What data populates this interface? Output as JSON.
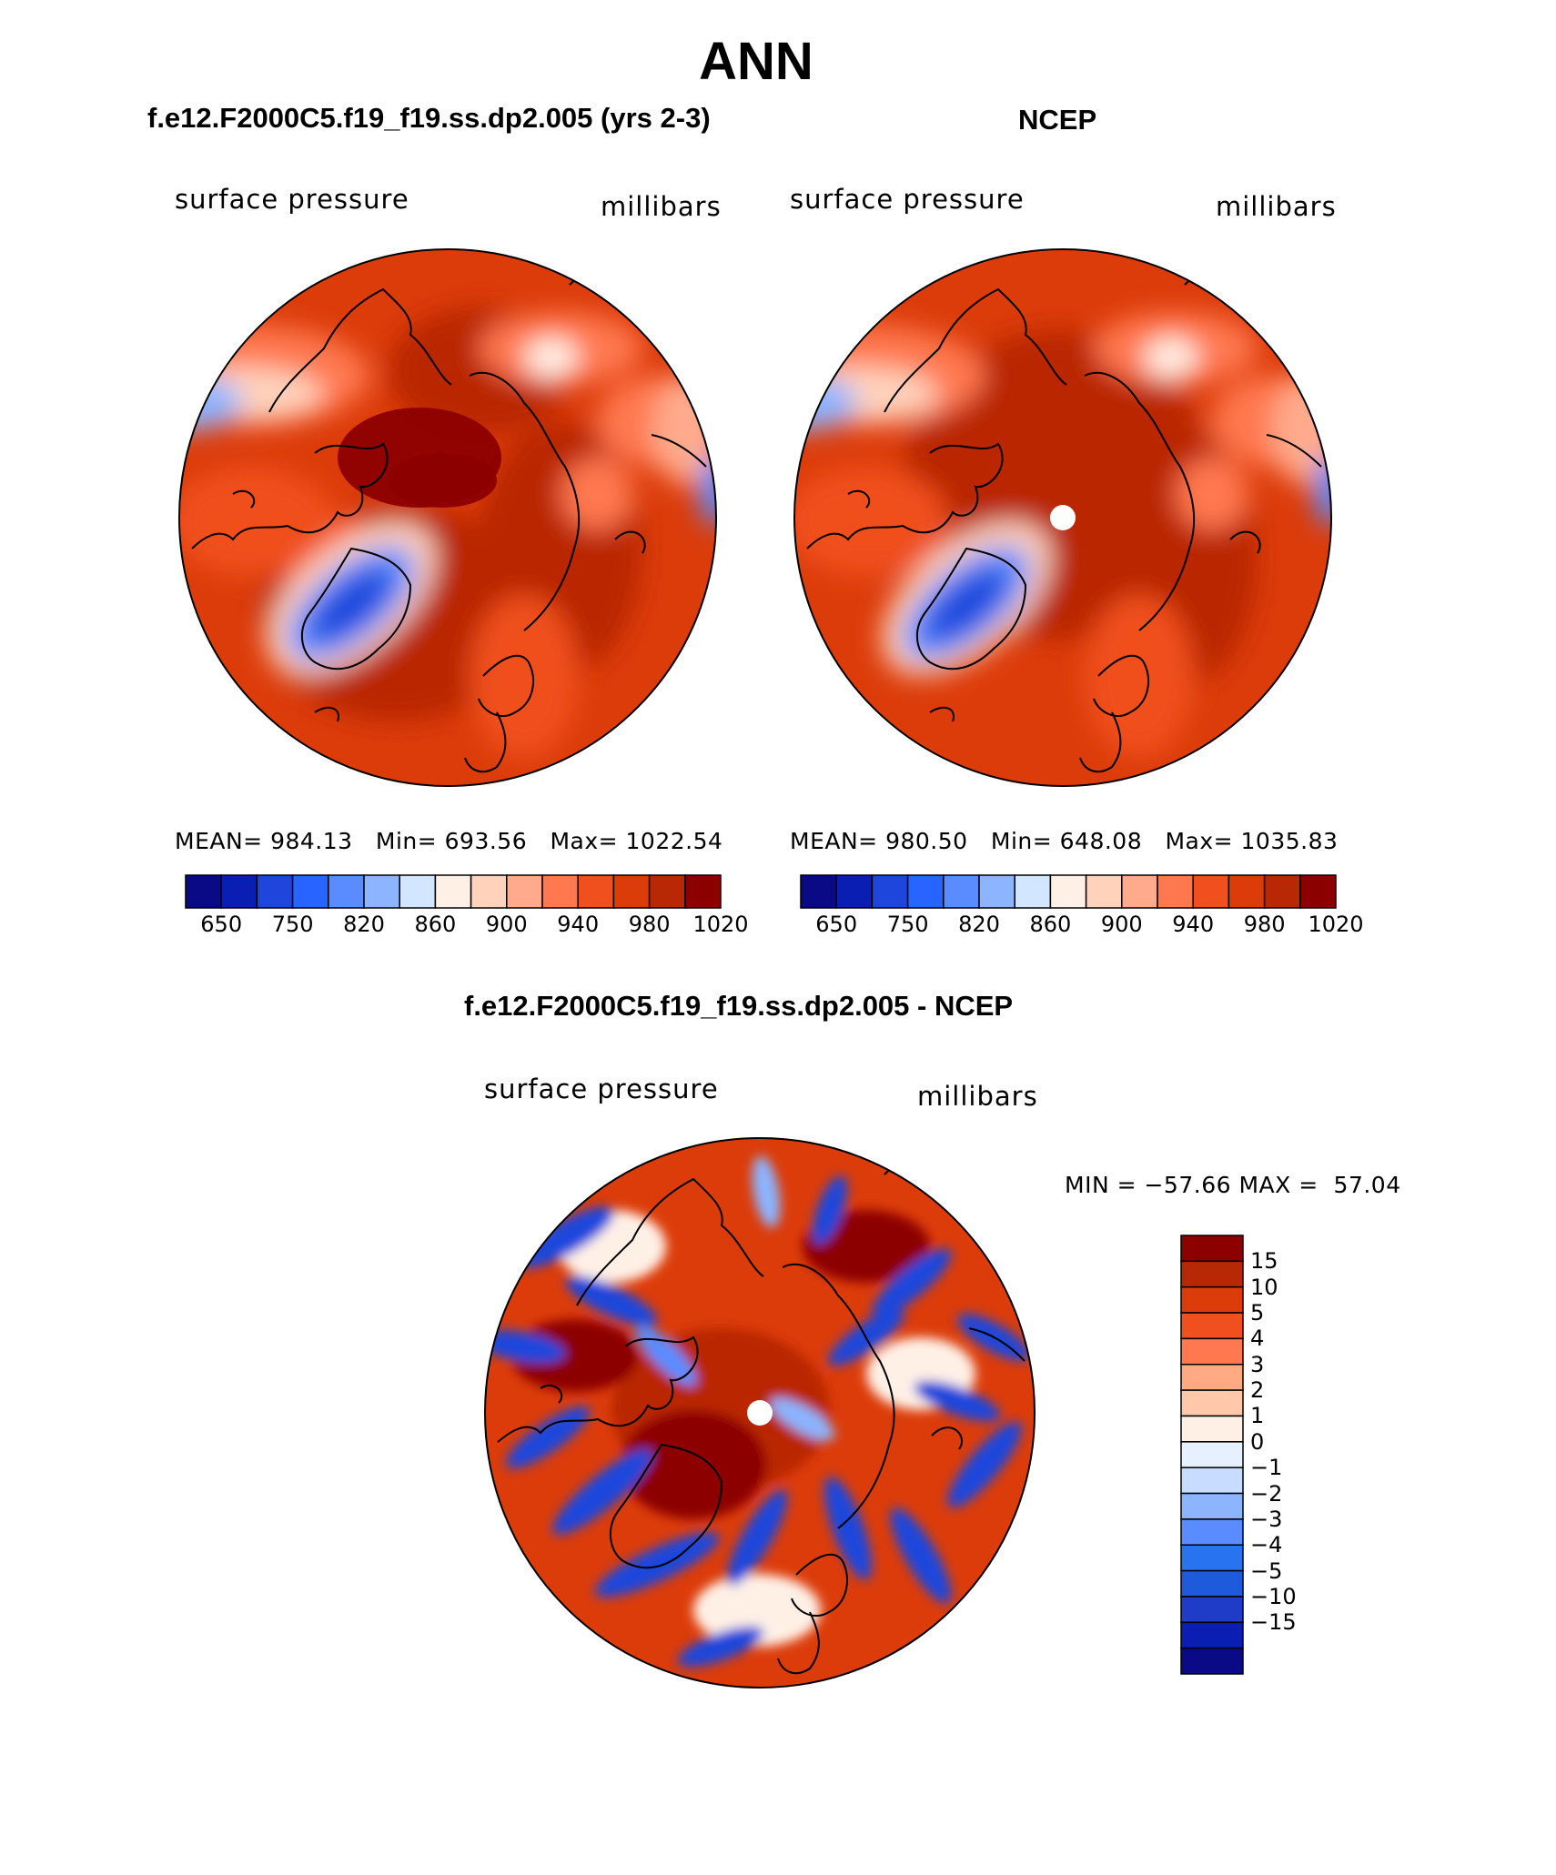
{
  "figure": {
    "title": "ANN",
    "colors": {
      "abs_palette": [
        "#0a0a87",
        "#0a1eb4",
        "#1e46dc",
        "#2864ff",
        "#5a8cff",
        "#8cb4ff",
        "#d2e6ff",
        "#fff0e6",
        "#ffd2bc",
        "#ffaa8c",
        "#ff7850",
        "#f0501e",
        "#dc3c0a",
        "#b92805",
        "#8c0000"
      ],
      "diff_palette": [
        "#0a0a87",
        "#0a1eb4",
        "#1e3cc8",
        "#1e5adc",
        "#2873f0",
        "#5a8cff",
        "#8cb4ff",
        "#c8dcff",
        "#e6f0ff",
        "#fff0e6",
        "#ffc8aa",
        "#ffaa82",
        "#ff7850",
        "#f0501e",
        "#dc3c0a",
        "#b92805",
        "#8c0000"
      ],
      "land_line": "#000000"
    },
    "panels": [
      {
        "name": "model",
        "title": "f.e12.F2000C5.f19_f19.ss.dp2.005 (yrs 2-3)",
        "variable": "surface pressure",
        "units": "millibars",
        "stats": "MEAN= 984.13   Min= 693.56   Max= 1022.54",
        "colorbar_ticks": [
          "650",
          "750",
          "820",
          "860",
          "900",
          "940",
          "980",
          "1020"
        ]
      },
      {
        "name": "obs",
        "title": "NCEP",
        "variable": "surface pressure",
        "units": "millibars",
        "stats": "MEAN= 980.50   Min= 648.08   Max= 1035.83",
        "colorbar_ticks": [
          "650",
          "750",
          "820",
          "860",
          "900",
          "940",
          "980",
          "1020"
        ]
      }
    ],
    "difference": {
      "title": "f.e12.F2000C5.f19_f19.ss.dp2.005 - NCEP",
      "variable": "surface pressure",
      "units": "millibars",
      "minmax": "MIN = −57.66 MAX =  57.04",
      "colorbar_ticks": [
        "15",
        "10",
        "5",
        "4",
        "3",
        "2",
        "1",
        "0",
        "−1",
        "−2",
        "−3",
        "−4",
        "−5",
        "−10",
        "−15"
      ]
    }
  }
}
